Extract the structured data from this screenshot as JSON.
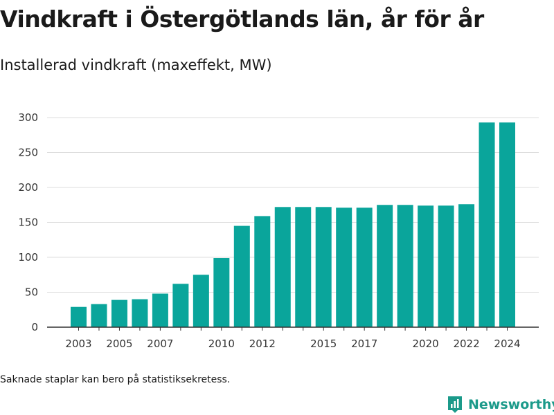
{
  "title": "Vindkraft i Östergötlands län, år för år",
  "subtitle": "Installerad vindkraft (maxeffekt, MW)",
  "footnote": "Saknade staplar kan bero på statistiksekretess.",
  "brand": {
    "name": "Newsworthy",
    "icon": "newsworthy-logo-icon",
    "color": "#1b9a8a"
  },
  "colors": {
    "bar": "#0aa59b",
    "grid": "#dddddd",
    "axis": "#333333"
  },
  "chart_data": {
    "type": "bar",
    "categories": [
      "2003",
      "2004",
      "2005",
      "2006",
      "2007",
      "2008",
      "2009",
      "2010",
      "2011",
      "2012",
      "2013",
      "2014",
      "2015",
      "2016",
      "2017",
      "2018",
      "2019",
      "2020",
      "2021",
      "2022",
      "2023",
      "2024"
    ],
    "x_tick_labels": [
      "2003",
      "2005",
      "2007",
      "2010",
      "2012",
      "2015",
      "2017",
      "2020",
      "2022",
      "2024"
    ],
    "values": [
      29,
      33,
      39,
      40,
      48,
      62,
      75,
      99,
      145,
      159,
      172,
      172,
      172,
      171,
      171,
      175,
      175,
      174,
      174,
      176,
      293,
      293
    ],
    "y_ticks": [
      0,
      50,
      100,
      150,
      200,
      250,
      300
    ],
    "ylim": [
      0,
      300
    ],
    "xlabel": "",
    "ylabel": "",
    "grid": true,
    "legend": false
  }
}
